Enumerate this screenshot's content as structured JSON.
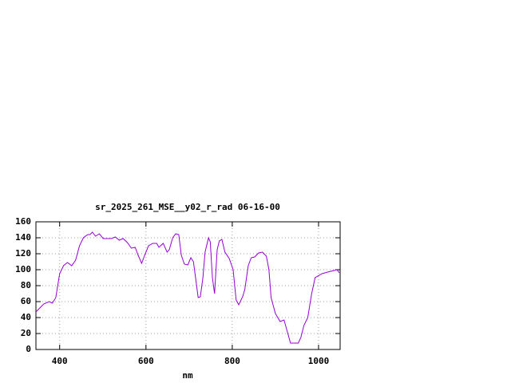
{
  "chart_data": {
    "type": "line",
    "title": "sr_2025_261_MSE__y02_r_rad 06-16-00",
    "x_label": "nm",
    "xlim": [
      345,
      1050
    ],
    "xticks": [
      400,
      600,
      800,
      1000
    ],
    "ylim": [
      0,
      160
    ],
    "yticks": [
      0,
      20,
      40,
      60,
      80,
      100,
      120,
      140,
      160
    ],
    "grid": true,
    "series": [
      {
        "color": "#9400d3",
        "x": [
          345,
          363,
          376,
          383,
          391,
          400,
          409,
          418,
          428,
          437,
          446,
          455,
          465,
          470,
          476,
          483,
          492,
          501,
          520,
          529,
          538,
          547,
          557,
          566,
          575,
          582,
          590,
          597,
          606,
          616,
          625,
          630,
          640,
          649,
          654,
          662,
          669,
          676,
          682,
          689,
          697,
          704,
          710,
          715,
          721,
          726,
          732,
          737,
          745,
          749,
          754,
          759,
          765,
          770,
          776,
          783,
          793,
          802,
          809,
          815,
          824,
          829,
          837,
          844,
          852,
          861,
          870,
          879,
          885,
          890,
          900,
          911,
          920,
          935,
          953,
          959,
          966,
          975,
          984,
          992,
          1008,
          1021,
          1036,
          1043,
          1048
        ],
        "values": [
          47,
          57,
          60,
          58,
          65,
          95,
          105,
          109,
          105,
          112,
          130,
          140,
          144,
          144,
          147,
          142,
          145,
          139,
          139,
          141,
          137,
          139,
          134,
          127,
          128,
          118,
          108,
          118,
          130,
          133,
          133,
          128,
          133,
          122,
          125,
          140,
          145,
          144,
          118,
          107,
          106,
          115,
          110,
          90,
          65,
          66,
          90,
          122,
          140,
          135,
          90,
          70,
          125,
          136,
          138,
          122,
          114,
          100,
          62,
          56,
          66,
          75,
          105,
          115,
          116,
          121,
          122,
          117,
          100,
          65,
          45,
          35,
          37,
          8,
          8,
          15,
          30,
          40,
          70,
          90,
          95,
          97,
          99,
          100,
          96
        ]
      }
    ]
  }
}
